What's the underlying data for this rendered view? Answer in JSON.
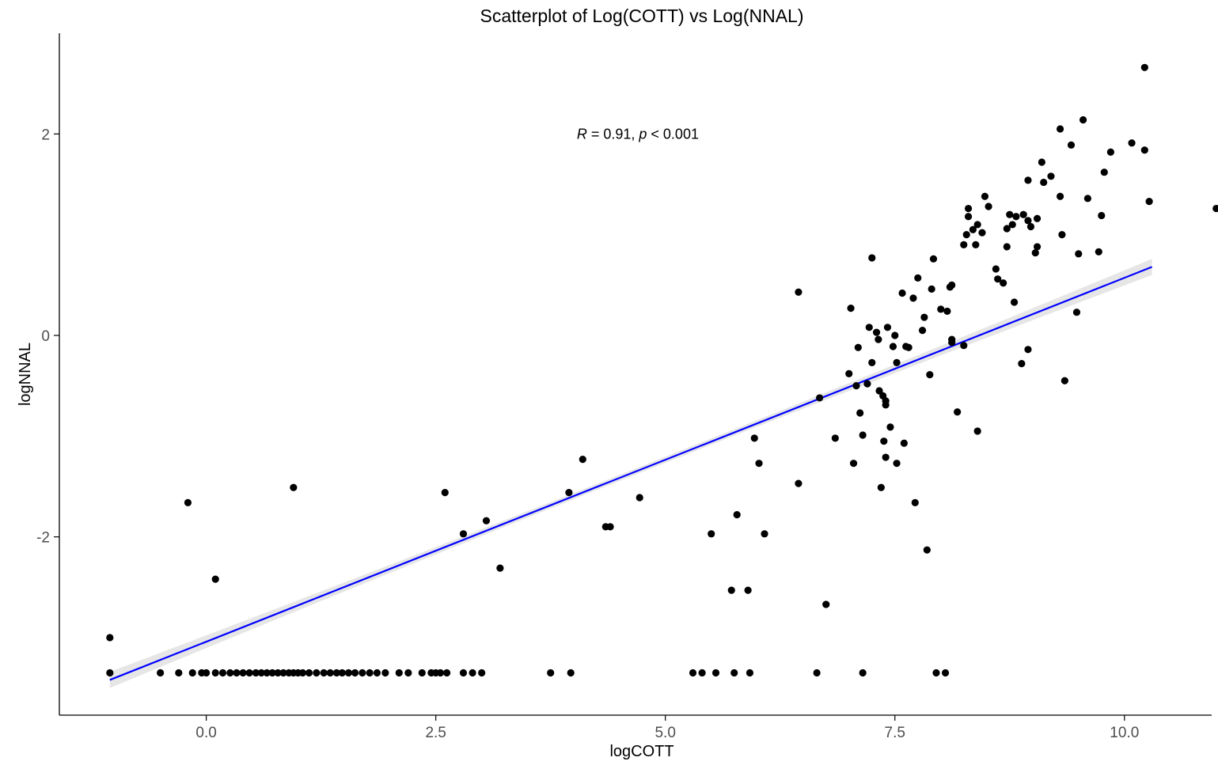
{
  "chart_data": {
    "type": "scatter",
    "title": "Scatterplot of Log(COTT) vs Log(NNAL)",
    "xlabel": "logCOTT",
    "ylabel": "logNNAL",
    "xlim": [
      -1.6,
      10.95
    ],
    "ylim": [
      -3.77,
      3.0
    ],
    "x_ticks": [
      0.0,
      2.5,
      5.0,
      7.5,
      10.0
    ],
    "x_tick_labels": [
      "0.0",
      "2.5",
      "5.0",
      "7.5",
      "10.0"
    ],
    "y_ticks": [
      -2,
      0,
      2
    ],
    "y_tick_labels": [
      "-2",
      "0",
      "2"
    ],
    "grid": false,
    "annotation": {
      "r_symbol": "R",
      "r_text": " = 0.91, ",
      "p_symbol": "p",
      "p_text": " < 0.001",
      "x": 4.7,
      "y": 2.0
    },
    "colors": {
      "points": "#000000",
      "regression_line": "#0000ff",
      "confidence_band": "#e6e6e6"
    },
    "regression": {
      "x": [
        -1.05,
        10.3
      ],
      "y": [
        -3.42,
        0.68
      ],
      "band_halfwidth_ends": 0.08,
      "band_halfwidth_mid": 0.03
    },
    "series": [
      {
        "points": [
          [
            -1.05,
            -3.0
          ],
          [
            -1.05,
            -3.35
          ],
          [
            -0.5,
            -3.35
          ],
          [
            -0.3,
            -3.35
          ],
          [
            -0.15,
            -3.35
          ],
          [
            -0.2,
            -1.66
          ],
          [
            -0.05,
            -3.35
          ],
          [
            0.0,
            -3.35
          ],
          [
            0.1,
            -2.42
          ],
          [
            0.1,
            -3.35
          ],
          [
            0.18,
            -3.35
          ],
          [
            0.26,
            -3.35
          ],
          [
            0.33,
            -3.35
          ],
          [
            0.4,
            -3.35
          ],
          [
            0.47,
            -3.35
          ],
          [
            0.54,
            -3.35
          ],
          [
            0.6,
            -3.35
          ],
          [
            0.66,
            -3.35
          ],
          [
            0.72,
            -3.35
          ],
          [
            0.78,
            -3.35
          ],
          [
            0.84,
            -3.35
          ],
          [
            0.9,
            -3.35
          ],
          [
            0.95,
            -1.51
          ],
          [
            0.95,
            -3.35
          ],
          [
            1.0,
            -3.35
          ],
          [
            1.05,
            -3.35
          ],
          [
            1.12,
            -3.35
          ],
          [
            1.2,
            -3.35
          ],
          [
            1.28,
            -3.35
          ],
          [
            1.35,
            -3.35
          ],
          [
            1.42,
            -3.35
          ],
          [
            1.48,
            -3.35
          ],
          [
            1.55,
            -3.35
          ],
          [
            1.62,
            -3.35
          ],
          [
            1.7,
            -3.35
          ],
          [
            1.78,
            -3.35
          ],
          [
            1.86,
            -3.35
          ],
          [
            1.95,
            -3.35
          ],
          [
            2.1,
            -3.35
          ],
          [
            2.2,
            -3.35
          ],
          [
            2.35,
            -3.35
          ],
          [
            2.45,
            -3.35
          ],
          [
            2.5,
            -3.35
          ],
          [
            2.55,
            -3.35
          ],
          [
            2.62,
            -3.35
          ],
          [
            2.6,
            -1.56
          ],
          [
            2.8,
            -3.35
          ],
          [
            2.8,
            -1.97
          ],
          [
            2.9,
            -3.35
          ],
          [
            3.0,
            -3.35
          ],
          [
            3.05,
            -1.84
          ],
          [
            3.2,
            -2.31
          ],
          [
            3.75,
            -3.35
          ],
          [
            3.95,
            -1.56
          ],
          [
            3.97,
            -3.35
          ],
          [
            4.1,
            -1.23
          ],
          [
            4.35,
            -1.9
          ],
          [
            4.4,
            -1.9
          ],
          [
            4.72,
            -1.61
          ],
          [
            5.3,
            -3.35
          ],
          [
            5.4,
            -3.35
          ],
          [
            5.5,
            -1.97
          ],
          [
            5.55,
            -3.35
          ],
          [
            5.72,
            -2.53
          ],
          [
            5.75,
            -3.35
          ],
          [
            5.78,
            -1.78
          ],
          [
            5.9,
            -2.53
          ],
          [
            5.92,
            -3.35
          ],
          [
            5.97,
            -1.02
          ],
          [
            6.02,
            -1.27
          ],
          [
            6.08,
            -1.97
          ],
          [
            6.45,
            -1.47
          ],
          [
            6.45,
            0.43
          ],
          [
            6.65,
            -3.35
          ],
          [
            6.68,
            -0.62
          ],
          [
            6.75,
            -2.67
          ],
          [
            6.85,
            -1.02
          ],
          [
            7.0,
            -0.38
          ],
          [
            7.02,
            0.27
          ],
          [
            7.05,
            -1.27
          ],
          [
            7.08,
            -0.5
          ],
          [
            7.1,
            -0.12
          ],
          [
            7.12,
            -0.77
          ],
          [
            7.15,
            -0.99
          ],
          [
            7.15,
            -3.35
          ],
          [
            7.2,
            -0.48
          ],
          [
            7.22,
            0.08
          ],
          [
            7.25,
            -0.27
          ],
          [
            7.25,
            0.77
          ],
          [
            7.3,
            0.03
          ],
          [
            7.32,
            -0.04
          ],
          [
            7.33,
            -0.55
          ],
          [
            7.35,
            -1.51
          ],
          [
            7.37,
            -0.6
          ],
          [
            7.38,
            -1.05
          ],
          [
            7.4,
            -0.65
          ],
          [
            7.4,
            -0.69
          ],
          [
            7.4,
            -1.21
          ],
          [
            7.42,
            0.08
          ],
          [
            7.45,
            -0.91
          ],
          [
            7.48,
            -0.11
          ],
          [
            7.5,
            0.0
          ],
          [
            7.52,
            -0.27
          ],
          [
            7.52,
            -1.27
          ],
          [
            7.58,
            0.42
          ],
          [
            7.6,
            -1.07
          ],
          [
            7.62,
            -0.11
          ],
          [
            7.65,
            -0.12
          ],
          [
            7.7,
            0.37
          ],
          [
            7.72,
            -1.66
          ],
          [
            7.75,
            0.57
          ],
          [
            7.8,
            0.05
          ],
          [
            7.82,
            0.18
          ],
          [
            7.85,
            -2.13
          ],
          [
            7.88,
            -0.39
          ],
          [
            7.9,
            0.46
          ],
          [
            7.92,
            0.76
          ],
          [
            7.95,
            -3.35
          ],
          [
            8.0,
            0.26
          ],
          [
            8.05,
            -3.35
          ],
          [
            8.07,
            0.24
          ],
          [
            8.1,
            0.48
          ],
          [
            8.12,
            0.5
          ],
          [
            8.12,
            -0.04
          ],
          [
            8.12,
            -0.07
          ],
          [
            8.18,
            -0.76
          ],
          [
            8.25,
            -0.1
          ],
          [
            8.25,
            0.9
          ],
          [
            8.28,
            1.0
          ],
          [
            8.3,
            1.26
          ],
          [
            8.3,
            1.18
          ],
          [
            8.35,
            1.05
          ],
          [
            8.38,
            0.9
          ],
          [
            8.4,
            1.1
          ],
          [
            8.4,
            -0.95
          ],
          [
            8.45,
            1.02
          ],
          [
            8.48,
            1.38
          ],
          [
            8.52,
            1.28
          ],
          [
            8.6,
            0.66
          ],
          [
            8.62,
            0.56
          ],
          [
            8.68,
            0.52
          ],
          [
            8.72,
            0.88
          ],
          [
            8.72,
            1.06
          ],
          [
            8.75,
            1.2
          ],
          [
            8.78,
            1.1
          ],
          [
            8.8,
            0.33
          ],
          [
            8.82,
            1.18
          ],
          [
            8.88,
            -0.28
          ],
          [
            8.9,
            1.2
          ],
          [
            8.95,
            -0.14
          ],
          [
            8.95,
            1.54
          ],
          [
            8.95,
            1.14
          ],
          [
            8.98,
            1.08
          ],
          [
            9.03,
            0.82
          ],
          [
            9.05,
            1.16
          ],
          [
            9.05,
            0.88
          ],
          [
            9.1,
            1.72
          ],
          [
            9.12,
            1.52
          ],
          [
            9.2,
            1.58
          ],
          [
            9.3,
            1.38
          ],
          [
            9.3,
            2.05
          ],
          [
            9.32,
            1.0
          ],
          [
            9.35,
            -0.45
          ],
          [
            9.42,
            1.89
          ],
          [
            9.48,
            0.23
          ],
          [
            9.5,
            0.81
          ],
          [
            9.55,
            2.14
          ],
          [
            9.6,
            1.36
          ],
          [
            9.72,
            0.83
          ],
          [
            9.75,
            1.19
          ],
          [
            9.78,
            1.62
          ],
          [
            9.85,
            1.82
          ],
          [
            10.08,
            1.91
          ],
          [
            10.22,
            2.66
          ],
          [
            10.22,
            1.84
          ],
          [
            10.27,
            1.33
          ],
          [
            11.0,
            1.26
          ]
        ]
      }
    ]
  }
}
